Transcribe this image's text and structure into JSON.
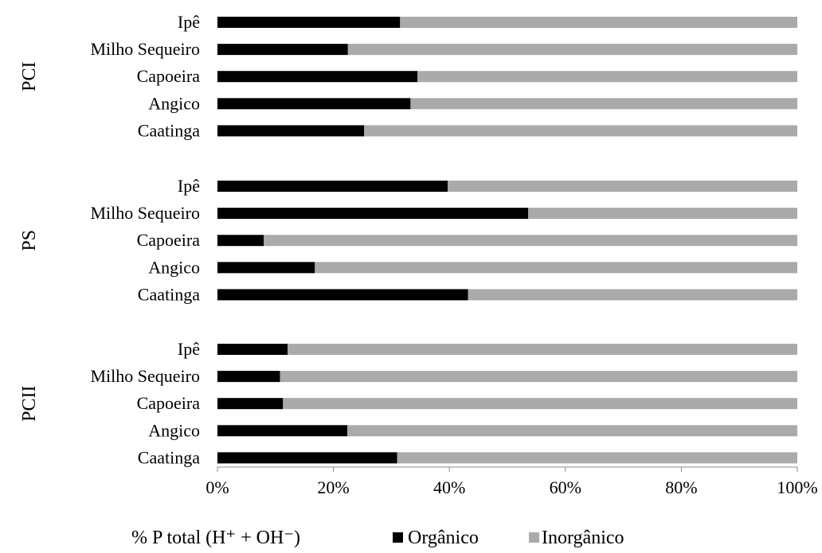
{
  "chart_data": {
    "type": "bar",
    "stacked": true,
    "orientation": "horizontal",
    "groups": [
      {
        "name": "PCI",
        "categories": [
          "Ipê",
          "Milho Sequeiro",
          "Capoeira",
          "Angico",
          "Caatinga"
        ],
        "series": [
          {
            "name": "Orgânico",
            "values": [
              31.5,
              22.5,
              34.5,
              33.3,
              25.3
            ]
          },
          {
            "name": "Inorgânico",
            "values": [
              68.5,
              77.5,
              65.5,
              66.7,
              74.7
            ]
          }
        ]
      },
      {
        "name": "PS",
        "categories": [
          "Ipê",
          "Milho Sequeiro",
          "Capoeira",
          "Angico",
          "Caatinga"
        ],
        "series": [
          {
            "name": "Orgânico",
            "values": [
              39.7,
              53.6,
              8.0,
              16.8,
              43.2
            ]
          },
          {
            "name": "Inorgânico",
            "values": [
              60.3,
              46.4,
              92.0,
              83.2,
              56.8
            ]
          }
        ]
      },
      {
        "name": "PCII",
        "categories": [
          "Ipê",
          "Milho Sequeiro",
          "Capoeira",
          "Angico",
          "Caatinga"
        ],
        "series": [
          {
            "name": "Orgânico",
            "values": [
              12.1,
              10.8,
              11.3,
              22.4,
              31.0
            ]
          },
          {
            "name": "Inorgânico",
            "values": [
              87.9,
              89.2,
              88.7,
              77.6,
              69.0
            ]
          }
        ]
      }
    ],
    "xaxis": {
      "ticks": [
        "0%",
        "20%",
        "40%",
        "60%",
        "80%",
        "100%"
      ],
      "range": [
        0,
        100
      ]
    },
    "xlabel": "% P  total (H⁺ + OH⁻)",
    "legend": {
      "position": "bottom",
      "entries": [
        {
          "name": "Orgânico",
          "color": "#000000"
        },
        {
          "name": "Inorgânico",
          "color": "#aaaaaa"
        }
      ]
    },
    "colors": {
      "organic": "#000000",
      "inorganic": "#aaaaaa",
      "axis": "#888888"
    },
    "grid": false
  }
}
